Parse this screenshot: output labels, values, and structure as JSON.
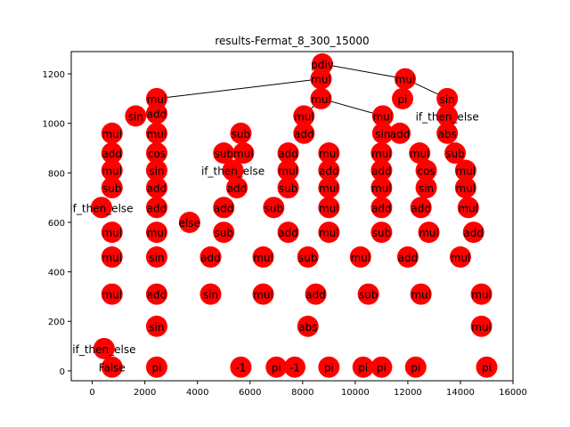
{
  "chart_data": {
    "type": "scatter",
    "title": "results-Fermat_8_300_15000",
    "xlabel": "",
    "ylabel": "",
    "xlim": [
      -800,
      16000
    ],
    "ylim": [
      -40,
      1290
    ],
    "x_ticks": [
      0,
      2000,
      4000,
      6000,
      8000,
      10000,
      12000,
      14000,
      16000
    ],
    "y_ticks": [
      0,
      200,
      400,
      600,
      800,
      1000,
      1200
    ],
    "grid": false,
    "node_color": "#ff0000",
    "edge_color": "#000000",
    "nodes": [
      {
        "id": "root",
        "label": "pdiv",
        "x": 8750,
        "y": 1240
      },
      {
        "id": "a1",
        "label": "mul",
        "x": 8700,
        "y": 1180
      },
      {
        "id": "a2",
        "label": "mul",
        "x": 8700,
        "y": 1100
      },
      {
        "id": "b1",
        "label": "mul",
        "x": 11900,
        "y": 1180
      },
      {
        "id": "b2",
        "label": "pi",
        "x": 11800,
        "y": 1100
      },
      {
        "id": "b3",
        "label": "sin",
        "x": 13500,
        "y": 1100
      },
      {
        "id": "c1",
        "label": "mul",
        "x": 2450,
        "y": 1100
      },
      {
        "id": "c2",
        "label": "add",
        "x": 2450,
        "y": 1040
      },
      {
        "id": "c3",
        "label": "sin",
        "x": 1650,
        "y": 1030
      },
      {
        "id": "d1",
        "label": "mul",
        "x": 8050,
        "y": 1030
      },
      {
        "id": "d2",
        "label": "add",
        "x": 8050,
        "y": 960
      },
      {
        "id": "e1",
        "label": "mul",
        "x": 11050,
        "y": 1030
      },
      {
        "id": "e2",
        "label": "sin",
        "x": 11050,
        "y": 960
      },
      {
        "id": "e3",
        "label": "add",
        "x": 11700,
        "y": 960
      },
      {
        "id": "f1",
        "label": "if_then_else",
        "x": 13500,
        "y": 1030
      },
      {
        "id": "f2",
        "label": "abs",
        "x": 13500,
        "y": 960
      },
      {
        "id": "g1",
        "label": "sub",
        "x": 5650,
        "y": 960
      },
      {
        "id": "g2",
        "label": "mul",
        "x": 750,
        "y": 960
      },
      {
        "id": "g3",
        "label": "mul",
        "x": 2450,
        "y": 960
      },
      {
        "id": "h1",
        "label": "add",
        "x": 750,
        "y": 880
      },
      {
        "id": "h2",
        "label": "cos",
        "x": 2450,
        "y": 880
      },
      {
        "id": "h3",
        "label": "sub",
        "x": 5000,
        "y": 880
      },
      {
        "id": "h4",
        "label": "mul",
        "x": 5750,
        "y": 880
      },
      {
        "id": "h5",
        "label": "add",
        "x": 7450,
        "y": 880
      },
      {
        "id": "h6",
        "label": "mul",
        "x": 9000,
        "y": 880
      },
      {
        "id": "h7",
        "label": "mul",
        "x": 11000,
        "y": 880
      },
      {
        "id": "h8",
        "label": "mul",
        "x": 12450,
        "y": 880
      },
      {
        "id": "h9",
        "label": "sub",
        "x": 13800,
        "y": 880
      },
      {
        "id": "i1",
        "label": "mul",
        "x": 750,
        "y": 810
      },
      {
        "id": "i2",
        "label": "sin",
        "x": 2450,
        "y": 810
      },
      {
        "id": "i3",
        "label": "if_then_else",
        "x": 5350,
        "y": 810
      },
      {
        "id": "i4",
        "label": "mul",
        "x": 7450,
        "y": 810
      },
      {
        "id": "i5",
        "label": "add",
        "x": 9000,
        "y": 810
      },
      {
        "id": "i6",
        "label": "add",
        "x": 11000,
        "y": 810
      },
      {
        "id": "i7",
        "label": "cos",
        "x": 12700,
        "y": 810
      },
      {
        "id": "i8",
        "label": "mul",
        "x": 14200,
        "y": 810
      },
      {
        "id": "j1",
        "label": "sub",
        "x": 750,
        "y": 740
      },
      {
        "id": "j2",
        "label": "add",
        "x": 2450,
        "y": 740
      },
      {
        "id": "j3",
        "label": "add",
        "x": 5500,
        "y": 740
      },
      {
        "id": "j4",
        "label": "sub",
        "x": 7450,
        "y": 740
      },
      {
        "id": "j5",
        "label": "mul",
        "x": 9000,
        "y": 740
      },
      {
        "id": "j6",
        "label": "mul",
        "x": 11000,
        "y": 740
      },
      {
        "id": "j7",
        "label": "sin",
        "x": 12700,
        "y": 740
      },
      {
        "id": "j8",
        "label": "mul",
        "x": 14200,
        "y": 740
      },
      {
        "id": "k1",
        "label": "if_then_else",
        "x": 350,
        "y": 660
      },
      {
        "id": "k2",
        "label": "add",
        "x": 2450,
        "y": 660
      },
      {
        "id": "k3",
        "label": "else",
        "x": 3700,
        "y": 600
      },
      {
        "id": "k4",
        "label": "add",
        "x": 5000,
        "y": 660
      },
      {
        "id": "k5",
        "label": "sub",
        "x": 6900,
        "y": 660
      },
      {
        "id": "k6",
        "label": "mul",
        "x": 9000,
        "y": 660
      },
      {
        "id": "k7",
        "label": "add",
        "x": 11000,
        "y": 660
      },
      {
        "id": "k8",
        "label": "add",
        "x": 12500,
        "y": 660
      },
      {
        "id": "k9",
        "label": "mul",
        "x": 14300,
        "y": 660
      },
      {
        "id": "l1",
        "label": "mul",
        "x": 750,
        "y": 560
      },
      {
        "id": "l2",
        "label": "mul",
        "x": 2450,
        "y": 560
      },
      {
        "id": "l3",
        "label": "sub",
        "x": 5000,
        "y": 560
      },
      {
        "id": "l4",
        "label": "add",
        "x": 7450,
        "y": 560
      },
      {
        "id": "l5",
        "label": "mul",
        "x": 9000,
        "y": 560
      },
      {
        "id": "l6",
        "label": "sub",
        "x": 11000,
        "y": 560
      },
      {
        "id": "l7",
        "label": "mul",
        "x": 12800,
        "y": 560
      },
      {
        "id": "l8",
        "label": "add",
        "x": 14500,
        "y": 560
      },
      {
        "id": "m1",
        "label": "mul",
        "x": 750,
        "y": 460
      },
      {
        "id": "m2",
        "label": "sin",
        "x": 2450,
        "y": 460
      },
      {
        "id": "m3",
        "label": "add",
        "x": 4500,
        "y": 460
      },
      {
        "id": "m4",
        "label": "mul",
        "x": 6500,
        "y": 460
      },
      {
        "id": "m5",
        "label": "sub",
        "x": 8200,
        "y": 460
      },
      {
        "id": "m6",
        "label": "mul",
        "x": 10200,
        "y": 460
      },
      {
        "id": "m7",
        "label": "add",
        "x": 12000,
        "y": 460
      },
      {
        "id": "m8",
        "label": "mul",
        "x": 14000,
        "y": 460
      },
      {
        "id": "n1",
        "label": "mul",
        "x": 750,
        "y": 310
      },
      {
        "id": "n2",
        "label": "add",
        "x": 2450,
        "y": 310
      },
      {
        "id": "n3",
        "label": "sin",
        "x": 4500,
        "y": 310
      },
      {
        "id": "n4",
        "label": "mul",
        "x": 6500,
        "y": 310
      },
      {
        "id": "n5",
        "label": "add",
        "x": 8500,
        "y": 310
      },
      {
        "id": "n6",
        "label": "sub",
        "x": 10500,
        "y": 310
      },
      {
        "id": "n7",
        "label": "mul",
        "x": 12500,
        "y": 310
      },
      {
        "id": "n8",
        "label": "mul",
        "x": 14800,
        "y": 310
      },
      {
        "id": "o1",
        "label": "if_then_else",
        "x": 450,
        "y": 90
      },
      {
        "id": "o2",
        "label": "sin",
        "x": 2450,
        "y": 180
      },
      {
        "id": "o3",
        "label": "abs",
        "x": 8200,
        "y": 180
      },
      {
        "id": "o4",
        "label": "mul",
        "x": 14800,
        "y": 180
      },
      {
        "id": "p1",
        "label": "False",
        "x": 750,
        "y": 15
      },
      {
        "id": "p2",
        "label": "pi",
        "x": 2450,
        "y": 15
      },
      {
        "id": "p3",
        "label": "-1",
        "x": 5650,
        "y": 15
      },
      {
        "id": "p4",
        "label": "pi",
        "x": 7000,
        "y": 15
      },
      {
        "id": "p5",
        "label": "-1",
        "x": 7700,
        "y": 15
      },
      {
        "id": "p6",
        "label": "pi",
        "x": 9000,
        "y": 15
      },
      {
        "id": "p7",
        "label": "pi",
        "x": 10300,
        "y": 15
      },
      {
        "id": "p8",
        "label": "pi",
        "x": 11000,
        "y": 15
      },
      {
        "id": "p9",
        "label": "pi",
        "x": 12300,
        "y": 15
      },
      {
        "id": "p10",
        "label": "pi",
        "x": 15000,
        "y": 15
      }
    ],
    "edges": [
      [
        "root",
        "a1"
      ],
      [
        "root",
        "b1"
      ],
      [
        "a1",
        "a2"
      ],
      [
        "a1",
        "c1"
      ],
      [
        "a2",
        "d1"
      ],
      [
        "a2",
        "e1"
      ],
      [
        "b1",
        "b2"
      ],
      [
        "b1",
        "b3"
      ],
      [
        "b3",
        "f1"
      ],
      [
        "c1",
        "c2"
      ],
      [
        "c2",
        "c3"
      ]
    ]
  }
}
